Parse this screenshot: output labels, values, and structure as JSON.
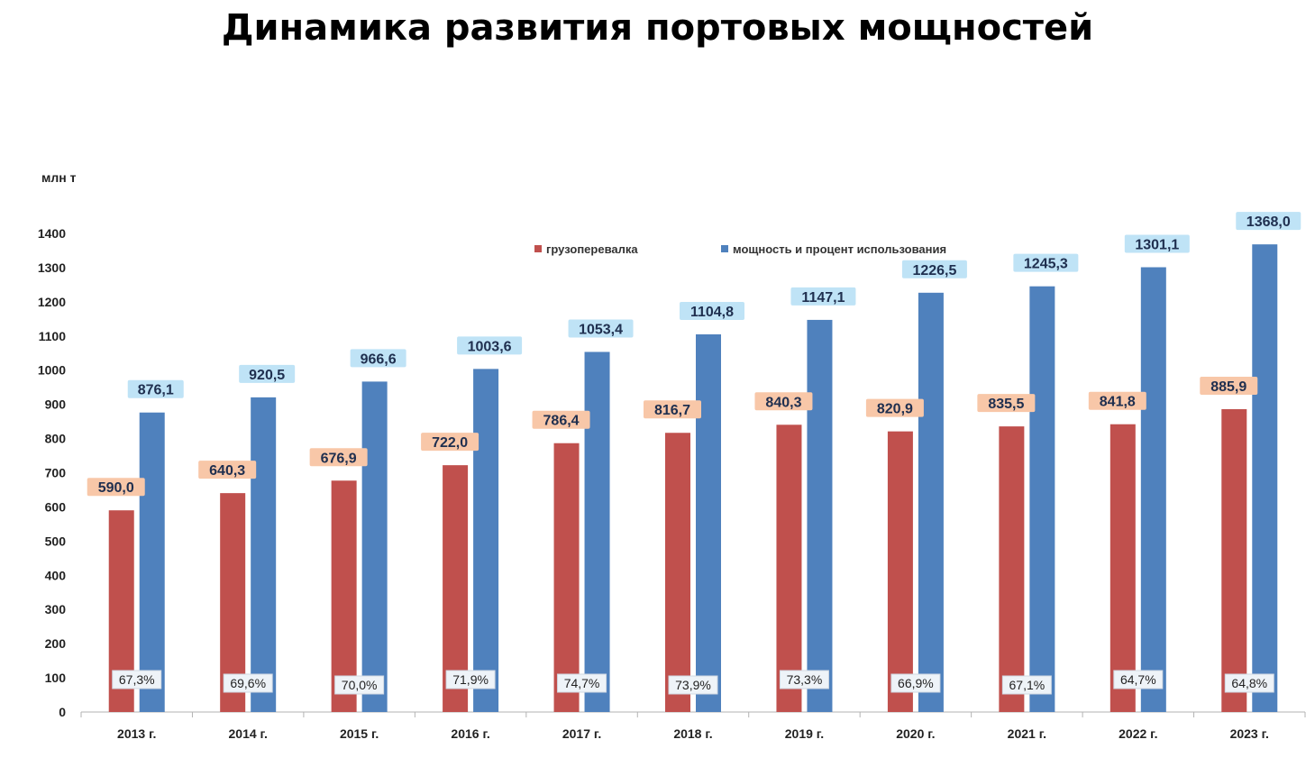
{
  "chart_data": {
    "type": "bar",
    "title": "Динамика развития портовых мощностей",
    "ylabel": "млн т",
    "ylim": [
      0,
      1400
    ],
    "yticks": [
      0,
      100,
      200,
      300,
      400,
      500,
      600,
      700,
      800,
      900,
      1000,
      1100,
      1200,
      1300,
      1400
    ],
    "grid": false,
    "legend_position": "top",
    "categories": [
      "2013 г.",
      "2014 г.",
      "2015 г.",
      "2016 г.",
      "2017 г.",
      "2018 г.",
      "2019 г.",
      "2020 г.",
      "2021 г.",
      "2022 г.",
      "2023 г."
    ],
    "series": [
      {
        "name": "грузоперевалка",
        "color": "#c0504d",
        "label_bg": "#f8c7a8",
        "values": [
          590.0,
          640.3,
          676.9,
          722.0,
          786.4,
          816.7,
          840.3,
          820.9,
          835.5,
          841.8,
          885.9
        ],
        "labels": [
          "590,0",
          "640,3",
          "676,9",
          "722,0",
          "786,4",
          "816,7",
          "840,3",
          "820,9",
          "835,5",
          "841,8",
          "885,9"
        ]
      },
      {
        "name": "мощность и процент использования",
        "color": "#4f81bd",
        "label_bg": "#bfe3f6",
        "values": [
          876.1,
          920.5,
          966.6,
          1003.6,
          1053.4,
          1104.8,
          1147.1,
          1226.5,
          1245.3,
          1301.1,
          1368.0
        ],
        "labels": [
          "876,1",
          "920,5",
          "966,6",
          "1003,6",
          "1053,4",
          "1104,8",
          "1147,1",
          "1226,5",
          "1245,3",
          "1301,1",
          "1368,0"
        ]
      }
    ],
    "utilization_percent": [
      67.3,
      69.6,
      70.0,
      71.9,
      74.7,
      73.9,
      73.3,
      66.9,
      67.1,
      64.7,
      64.8
    ],
    "utilization_labels": [
      "67,3%",
      "69,6%",
      "70,0%",
      "71,9%",
      "74,7%",
      "73,9%",
      "73,3%",
      "66,9%",
      "67,1%",
      "64,7%",
      "64,8%"
    ]
  }
}
